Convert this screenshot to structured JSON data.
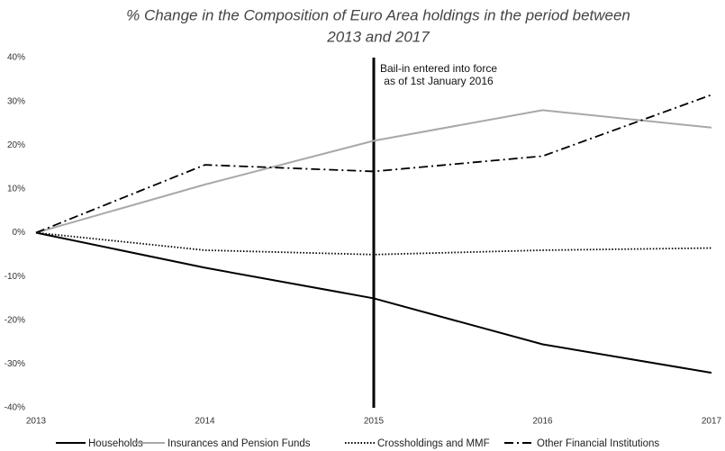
{
  "chart_data": {
    "type": "line",
    "title": [
      "% Change in the Composition of Euro Area holdings in the period between",
      "2013 and 2017"
    ],
    "x": [
      2013,
      2014,
      2015,
      2016,
      2017
    ],
    "xlim": [
      2013,
      2017
    ],
    "xticks": [
      2013,
      2014,
      2015,
      2016,
      2017
    ],
    "ylim": [
      -40,
      40
    ],
    "yticks": [
      {
        "value": -40,
        "label": "-40%"
      },
      {
        "value": -30,
        "label": "-30%"
      },
      {
        "value": -20,
        "label": "-20%"
      },
      {
        "value": -10,
        "label": "-10%"
      },
      {
        "value": 0,
        "label": "0%"
      },
      {
        "value": 10,
        "label": "10%"
      },
      {
        "value": 20,
        "label": "20%"
      },
      {
        "value": 30,
        "label": "30%"
      },
      {
        "value": 40,
        "label": "40%"
      }
    ],
    "grid": false,
    "legend": "bottom",
    "series": [
      {
        "name": "Households",
        "color": "#000000",
        "style": "solid",
        "values": [
          0,
          -8,
          -15,
          -25.5,
          -32
        ]
      },
      {
        "name": "Insurances and Pension Funds",
        "color": "#a8a8a8",
        "style": "solid",
        "values": [
          0,
          11,
          21,
          28,
          24
        ]
      },
      {
        "name": "Crossholdings and MMF",
        "color": "#000000",
        "style": "dotted",
        "values": [
          0,
          -4,
          -5,
          -4,
          -3.5
        ]
      },
      {
        "name": "Other Financial Institutions",
        "color": "#000000",
        "style": "dashdot",
        "values": [
          0,
          15.5,
          14,
          17.5,
          31.5
        ]
      }
    ],
    "annotation": {
      "x": 2015,
      "lines": [
        "Bail-in entered into force",
        "as of 1st January 2016"
      ]
    }
  }
}
